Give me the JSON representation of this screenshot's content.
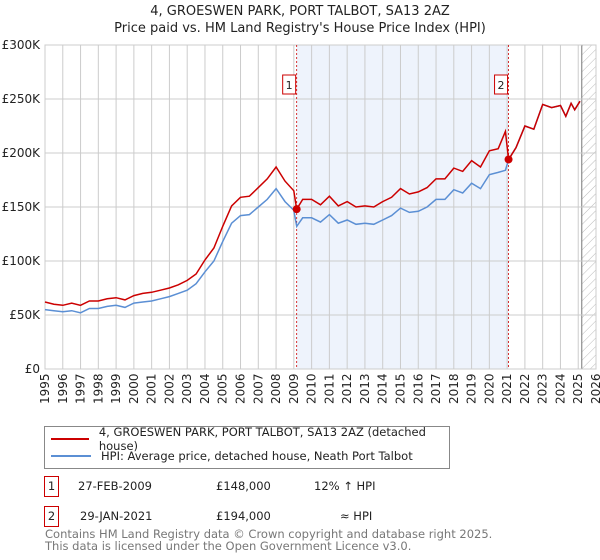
{
  "title": "4, GROESWEN PARK, PORT TALBOT, SA13 2AZ",
  "subtitle": "Price paid vs. HM Land Registry's House Price Index (HPI)",
  "legend": {
    "property": "4, GROESWEN PARK, PORT TALBOT, SA13 2AZ (detached house)",
    "hpi": "HPI: Average price, detached house, Neath Port Talbot"
  },
  "sales": [
    {
      "num": "1",
      "date": "27-FEB-2009",
      "price": "£148,000",
      "rel": "12% ↑ HPI",
      "x": 2009.16,
      "value": 148000
    },
    {
      "num": "2",
      "date": "29-JAN-2021",
      "price": "£194,000",
      "rel": "≈ HPI",
      "x": 2021.08,
      "value": 194000
    }
  ],
  "footer": [
    "Contains HM Land Registry data © Crown copyright and database right 2025.",
    "This data is licensed under the Open Government Licence v3.0."
  ],
  "colors": {
    "property": "#cc0000",
    "hpi": "#5b8fd4",
    "shade": "#eef3fc",
    "grid": "#cccccc"
  },
  "chart_data": {
    "type": "line",
    "xlim": [
      1995,
      2026
    ],
    "ylim": [
      0,
      300000
    ],
    "yticks": [
      0,
      50000,
      100000,
      150000,
      200000,
      250000,
      300000
    ],
    "ytick_labels": [
      "£0",
      "£50K",
      "£100K",
      "£150K",
      "£200K",
      "£250K",
      "£300K"
    ],
    "xticks": [
      "1995",
      "1996",
      "1997",
      "1998",
      "1999",
      "2000",
      "2001",
      "2002",
      "2003",
      "2004",
      "2005",
      "2006",
      "2007",
      "2008",
      "2009",
      "2010",
      "2011",
      "2012",
      "2013",
      "2014",
      "2015",
      "2016",
      "2017",
      "2018",
      "2019",
      "2020",
      "2021",
      "2022",
      "2023",
      "2024",
      "2025",
      "2026"
    ],
    "shaded_range": [
      2009.16,
      2021.08
    ],
    "forecast_hatch_from": 2025.2,
    "grid": true,
    "x": [
      1995,
      1995.5,
      1996,
      1996.5,
      1997,
      1997.5,
      1998,
      1998.5,
      1999,
      1999.5,
      2000,
      2000.5,
      2001,
      2001.5,
      2002,
      2002.5,
      2003,
      2003.5,
      2004,
      2004.5,
      2005,
      2005.5,
      2006,
      2006.5,
      2007,
      2007.5,
      2008,
      2008.5,
      2009,
      2009.16,
      2009.5,
      2010,
      2010.5,
      2011,
      2011.5,
      2012,
      2012.5,
      2013,
      2013.5,
      2014,
      2014.5,
      2015,
      2015.5,
      2016,
      2016.5,
      2017,
      2017.5,
      2018,
      2018.5,
      2019,
      2019.5,
      2020,
      2020.5,
      2020.9,
      2021.08,
      2021.5,
      2022,
      2022.5,
      2023,
      2023.5,
      2024,
      2024.3,
      2024.6,
      2024.8,
      2025.1
    ],
    "series": [
      {
        "name": "4, GROESWEN PARK, PORT TALBOT, SA13 2AZ (detached house)",
        "values": [
          62000,
          60000,
          59000,
          61000,
          59000,
          63000,
          63000,
          65000,
          66000,
          64000,
          68000,
          70000,
          71000,
          73000,
          75000,
          78000,
          82000,
          88000,
          101000,
          112000,
          132000,
          151000,
          159000,
          160000,
          168000,
          176000,
          187000,
          174000,
          165000,
          148000,
          157000,
          157000,
          152000,
          160000,
          151000,
          155000,
          150000,
          151000,
          150000,
          155000,
          159000,
          167000,
          162000,
          164000,
          168000,
          176000,
          176000,
          186000,
          183000,
          193000,
          187000,
          202000,
          204000,
          220000,
          194000,
          205000,
          225000,
          222000,
          245000,
          242000,
          244000,
          234000,
          246000,
          240000,
          248000
        ]
      },
      {
        "name": "HPI: Average price, detached house, Neath Port Talbot",
        "values": [
          55000,
          54000,
          53000,
          54000,
          52000,
          56000,
          56000,
          58000,
          59000,
          57000,
          61000,
          62000,
          63000,
          65000,
          67000,
          70000,
          73000,
          79000,
          90000,
          100000,
          118000,
          135000,
          142000,
          143000,
          150000,
          157000,
          167000,
          155000,
          147000,
          132000,
          140000,
          140000,
          136000,
          143000,
          135000,
          138000,
          134000,
          135000,
          134000,
          138000,
          142000,
          149000,
          145000,
          146000,
          150000,
          157000,
          157000,
          166000,
          163000,
          172000,
          167000,
          180000,
          182000,
          184000,
          194000,
          205000,
          225000,
          222000,
          245000,
          242000,
          244000,
          234000,
          246000,
          240000,
          248000
        ]
      }
    ]
  }
}
